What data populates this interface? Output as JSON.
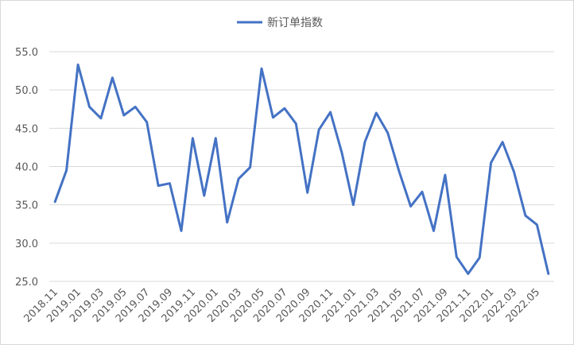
{
  "chart_data": {
    "type": "line",
    "categories": [
      "2018.11",
      null,
      "2019.01",
      null,
      "2019.03",
      null,
      "2019.05",
      null,
      "2019.07",
      null,
      "2019.09",
      null,
      "2019.11",
      null,
      "2020.01",
      null,
      "2020.03",
      null,
      "2020.05",
      null,
      "2020.07",
      null,
      "2020.09",
      null,
      "2020.11",
      null,
      "2021.01",
      null,
      "2021.03",
      null,
      "2021.05",
      null,
      "2021.07",
      null,
      "2021.09",
      null,
      "2021.11",
      null,
      "2022.01",
      null,
      "2022.03",
      null,
      "2022.05",
      null
    ],
    "series": [
      {
        "name": "新订单指数",
        "color": "#4472c4",
        "values": [
          35.4,
          39.5,
          53.3,
          47.8,
          46.3,
          51.6,
          46.7,
          47.8,
          45.8,
          37.5,
          37.8,
          31.6,
          43.7,
          36.2,
          43.7,
          32.7,
          38.4,
          39.9,
          52.8,
          46.4,
          47.6,
          45.6,
          36.6,
          44.8,
          47.1,
          41.8,
          35.0,
          43.2,
          47.0,
          44.4,
          39.3,
          34.8,
          36.7,
          31.6,
          38.9,
          28.2,
          26.0,
          28.1,
          40.5,
          43.2,
          39.3,
          33.6,
          32.4,
          26.0
        ]
      }
    ],
    "ylim": [
      25,
      55
    ],
    "yticks": [
      {
        "value": 25,
        "label": "25.0"
      },
      {
        "value": 30,
        "label": "30.0"
      },
      {
        "value": 35,
        "label": "35.0"
      },
      {
        "value": 40,
        "label": "40.0"
      },
      {
        "value": 45,
        "label": "45.0"
      },
      {
        "value": 50,
        "label": "50.0"
      },
      {
        "value": 55,
        "label": "55.0"
      }
    ],
    "grid": true,
    "legend": "top"
  }
}
